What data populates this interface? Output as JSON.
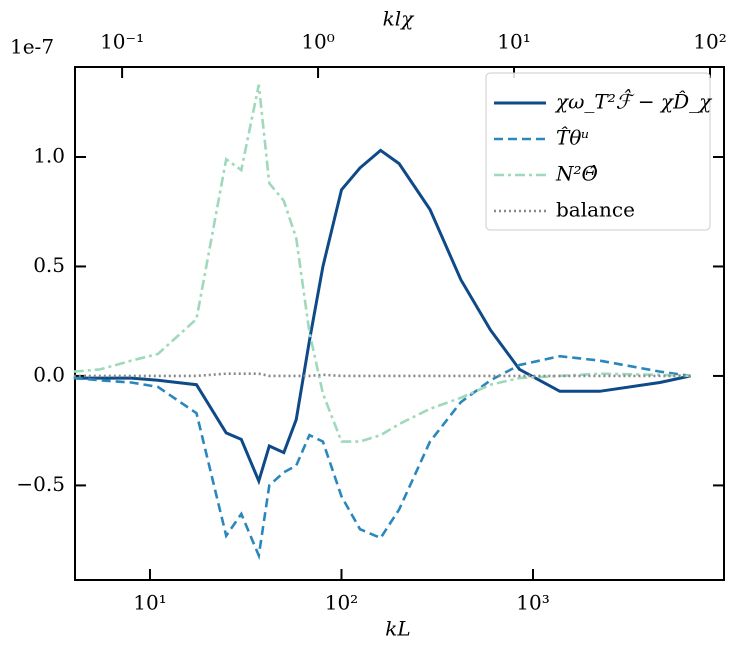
{
  "chart_data": {
    "type": "line",
    "xlabel": "kL",
    "x2label": "klχ",
    "y_offset_label": "1e-7",
    "xscale": "log",
    "xlim": [
      4.06,
      9940
    ],
    "xticks": [
      {
        "value": 10,
        "label": "10¹"
      },
      {
        "value": 100,
        "label": "10²"
      },
      {
        "value": 1000,
        "label": "10³"
      }
    ],
    "x2lim": [
      0.0575,
      117.9
    ],
    "x2ticks": [
      {
        "value": 0.1,
        "label": "10⁻¹"
      },
      {
        "value": 1,
        "label": "10⁰"
      },
      {
        "value": 10,
        "label": "10¹"
      },
      {
        "value": 100,
        "label": "10²"
      }
    ],
    "ylim": [
      -0.932,
      1.411
    ],
    "yticks": [
      {
        "value": -0.5,
        "label": "−0.5"
      },
      {
        "value": 0,
        "label": "0.0"
      },
      {
        "value": 0.5,
        "label": "0.5"
      },
      {
        "value": 1,
        "label": "1.0"
      }
    ],
    "legend": "upper right",
    "x": [
      4,
      5.5,
      8,
      11,
      17.5,
      25,
      30,
      37,
      42,
      50,
      58,
      68,
      80,
      100,
      125,
      160,
      200,
      290,
      420,
      600,
      850,
      1380,
      2230,
      4600,
      6660
    ],
    "series": [
      {
        "name": "χω_T²ℱ̂ − χD̂_χ",
        "color": "#0e4a88",
        "dash": "solid",
        "values": [
          -0.01,
          -0.01,
          -0.01,
          -0.02,
          -0.04,
          -0.26,
          -0.29,
          -0.48,
          -0.32,
          -0.35,
          -0.2,
          0.16,
          0.5,
          0.85,
          0.95,
          1.03,
          0.97,
          0.76,
          0.44,
          0.21,
          0.03,
          -0.07,
          -0.07,
          -0.03,
          0
        ]
      },
      {
        "name": "T̂θᵘ",
        "color": "#2a87bd",
        "dash": "dashed",
        "values": [
          -0.01,
          -0.02,
          -0.03,
          -0.05,
          -0.17,
          -0.73,
          -0.63,
          -0.82,
          -0.5,
          -0.44,
          -0.41,
          -0.27,
          -0.3,
          -0.55,
          -0.7,
          -0.74,
          -0.61,
          -0.3,
          -0.12,
          -0.02,
          0.05,
          0.09,
          0.07,
          0.02,
          0
        ]
      },
      {
        "name": "N²Θ̂",
        "color": "#9ed9bb",
        "dash": "dashdot",
        "values": [
          0.02,
          0.03,
          0.07,
          0.1,
          0.26,
          0.99,
          0.94,
          1.33,
          0.88,
          0.8,
          0.63,
          0.2,
          -0.08,
          -0.3,
          -0.3,
          -0.27,
          -0.22,
          -0.15,
          -0.1,
          -0.04,
          -0.01,
          0,
          0.01,
          0.005,
          0
        ]
      },
      {
        "name": "balance",
        "color": "#888888",
        "dash": "dotted",
        "values": [
          0,
          0,
          0,
          0,
          0,
          0.01,
          0.01,
          0.01,
          0,
          0,
          0,
          0,
          0.005,
          0,
          0,
          0,
          0,
          0,
          0,
          0,
          0,
          0,
          0,
          0,
          0
        ]
      }
    ]
  }
}
